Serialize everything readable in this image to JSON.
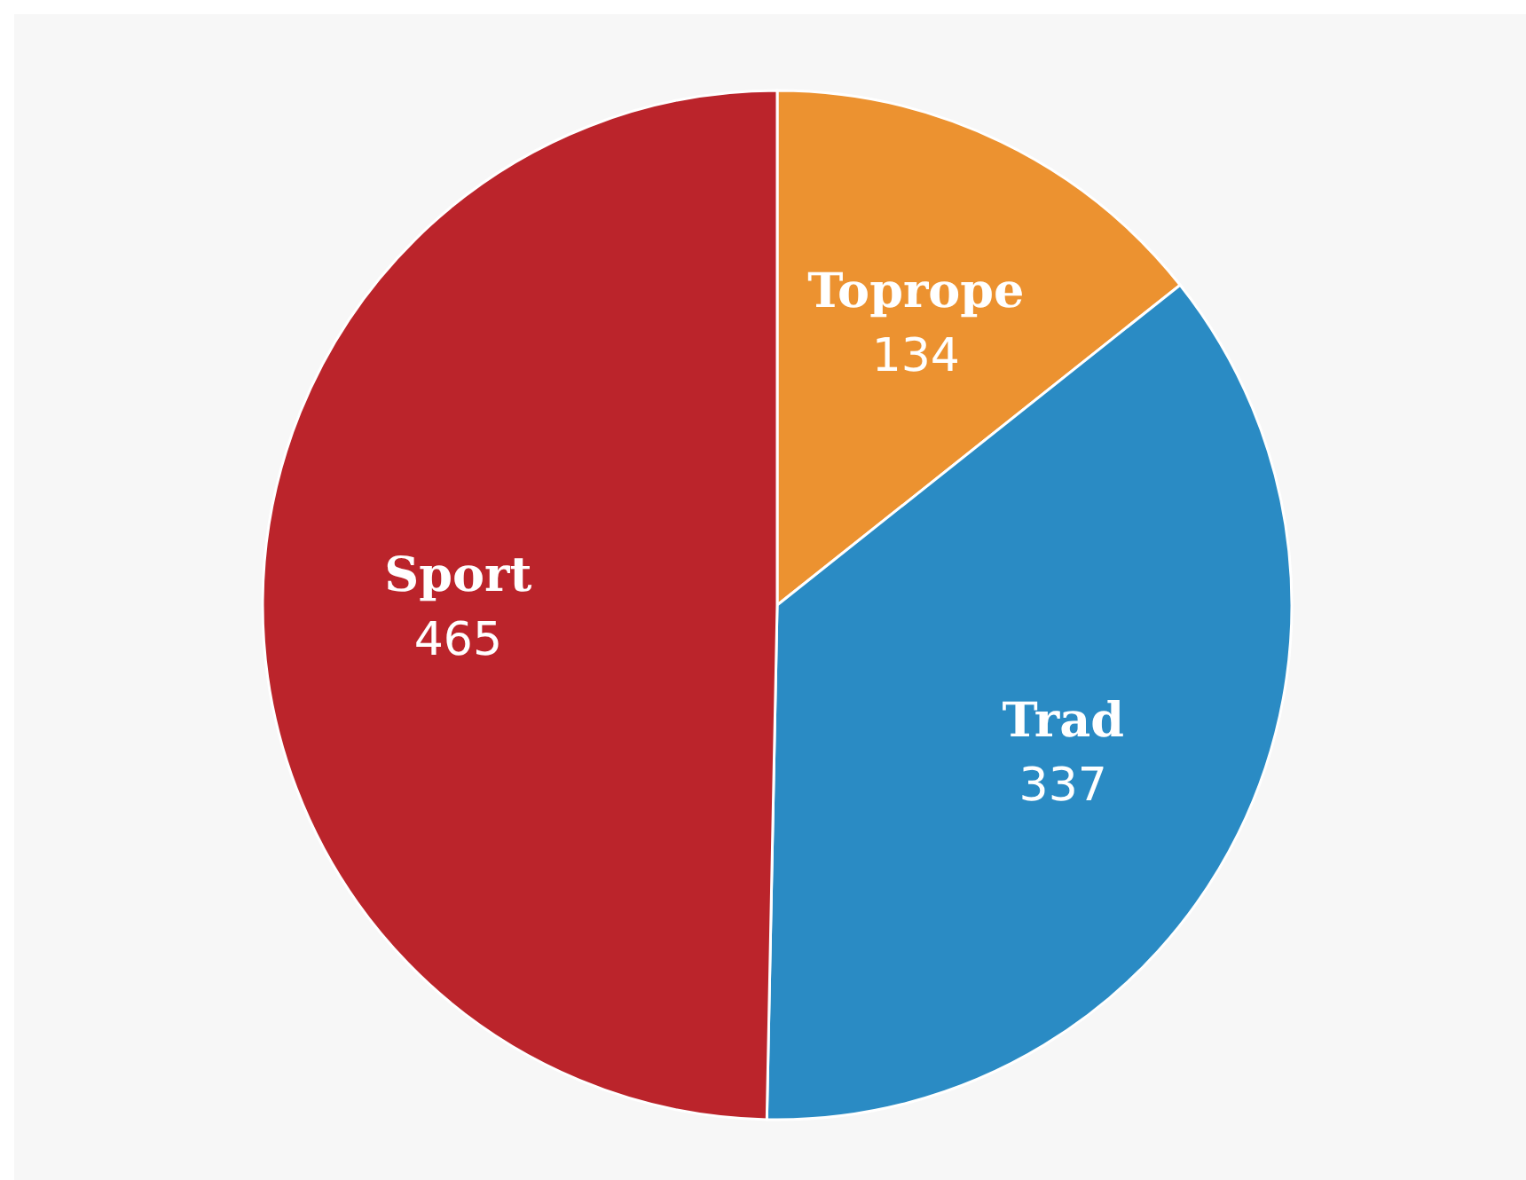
{
  "chart_data": {
    "type": "pie",
    "categories": [
      "Toprope",
      "Trad",
      "Sport"
    ],
    "values": [
      134,
      337,
      465
    ],
    "colors": [
      "#ec9230",
      "#2a8bc4",
      "#bb242b"
    ],
    "data_labels": true
  }
}
